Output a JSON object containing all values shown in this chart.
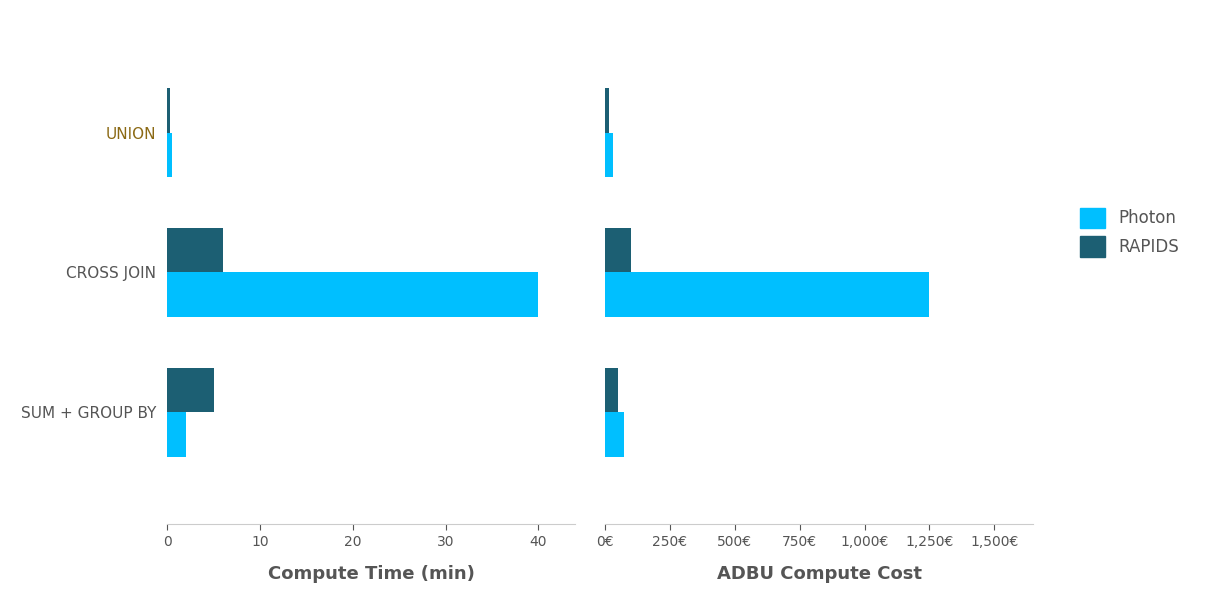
{
  "categories": [
    "SUM + GROUP BY",
    "CROSS JOIN",
    "UNION"
  ],
  "time_photon": [
    2.0,
    40.0,
    0.5
  ],
  "time_rapids": [
    5.0,
    6.0,
    0.3
  ],
  "cost_photon": [
    75.0,
    1250.0,
    30.0
  ],
  "cost_rapids": [
    50.0,
    100.0,
    15.0
  ],
  "color_photon": "#00BFFF",
  "color_rapids": "#1C5F73",
  "xlabel_left": "Compute Time (min)",
  "xlabel_right": "ADBU Compute Cost",
  "xticks_left": [
    0,
    10,
    20,
    30,
    40
  ],
  "xtick_labels_left": [
    "0",
    "10",
    "20",
    "30",
    "40"
  ],
  "xticks_right": [
    0,
    250,
    500,
    750,
    1000,
    1250,
    1500
  ],
  "xtick_labels_right": [
    "0€",
    "250€",
    "500€",
    "750€",
    "1,000€",
    "1,250€",
    "1,500€"
  ],
  "legend_photon": "Photon",
  "legend_rapids": "RAPIDS",
  "background_color": "#ffffff",
  "label_color": "#555555",
  "ytick_label_color": "#8B6914",
  "bar_height": 0.32,
  "xlim_left": [
    0,
    44
  ],
  "xlim_right": [
    0,
    1650
  ],
  "ylim": [
    -0.8,
    2.8
  ]
}
